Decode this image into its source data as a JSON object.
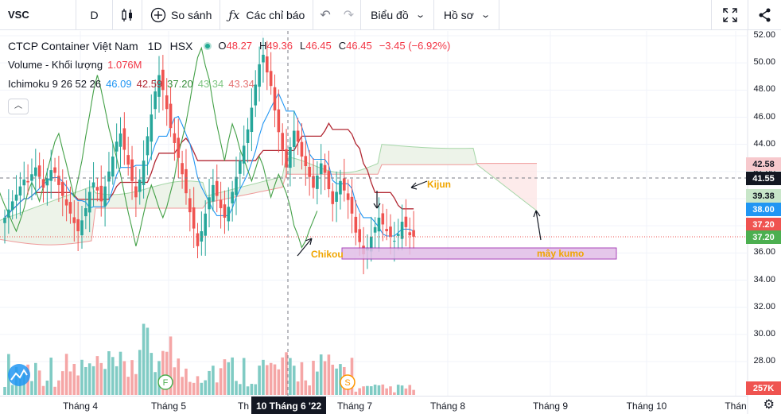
{
  "toolbar": {
    "symbol": "VSC",
    "interval": "D",
    "compare_label": "So sánh",
    "indicators_label": "Các chỉ báo",
    "chart_type_label": "Biểu đồ",
    "profile_label": "Hồ sơ",
    "icons": [
      "candle-type-icon",
      "plus-circle-icon",
      "fx-icon",
      "undo-icon",
      "redo-icon",
      "fullscreen-icon",
      "share-icon"
    ]
  },
  "legend": {
    "company": "CTCP Container Việt Nam",
    "interval": "1D",
    "exchange": "HSX",
    "open_label": "O",
    "open": "48.27",
    "high_label": "H",
    "high": "49.36",
    "low_label": "L",
    "low": "46.45",
    "close_label": "C",
    "close": "46.45",
    "change": "−3.45 (−6.92%)",
    "volume_label": "Volume - Khối lượng",
    "volume_value": "1.076M",
    "ichimoku_label": "Ichimoku 9 26 52 26",
    "ichimoku_values": [
      "46.09",
      "42.59",
      "37.20",
      "43.34",
      "43.34"
    ],
    "ichimoku_colors": [
      "#2196f3",
      "#b22833",
      "#388e3c",
      "#81c784",
      "#e57373"
    ]
  },
  "price_axis": {
    "ticks": [
      "52.00",
      "50.00",
      "48.00",
      "46.00",
      "44.00",
      "42.00",
      "40.00",
      "38.00",
      "36.00",
      "34.00",
      "32.00",
      "30.00",
      "28.00"
    ],
    "tags": [
      {
        "value": "42.58",
        "bg": "#f7c9cd",
        "fg": "#131722"
      },
      {
        "value": "41.55",
        "bg": "#131722",
        "fg": "#ffffff"
      },
      {
        "value": "39.38",
        "bg": "#c8e6c9",
        "fg": "#131722"
      },
      {
        "value": "38.00",
        "bg": "#2196f3",
        "fg": "#ffffff"
      },
      {
        "value": "37.20",
        "bg": "#ef5350",
        "fg": "#ffffff"
      },
      {
        "value": "37.20",
        "bg": "#4caf50",
        "fg": "#ffffff"
      },
      {
        "value": "257K",
        "bg": "#ef5350",
        "fg": "#ffffff"
      }
    ]
  },
  "time_axis": {
    "labels": [
      "Tháng 4",
      "Tháng 5",
      "Th",
      "Tháng 7",
      "Tháng 8",
      "Tháng 9",
      "Tháng 10",
      "Thán"
    ],
    "crosshair_date": "10 Tháng 6 '22"
  },
  "annotations": {
    "kijun": "Kijun",
    "chikou": "Chikou",
    "kumo": "mây kumo"
  },
  "markers": {
    "f": "F",
    "s": "S"
  },
  "colors": {
    "up": "#26a69a",
    "down": "#ef5350",
    "tenkan": "#2196f3",
    "kijun": "#b22833",
    "chikou": "#388e3c",
    "annotation": "#f0a500",
    "kumo_box": "#e1bee7"
  }
}
